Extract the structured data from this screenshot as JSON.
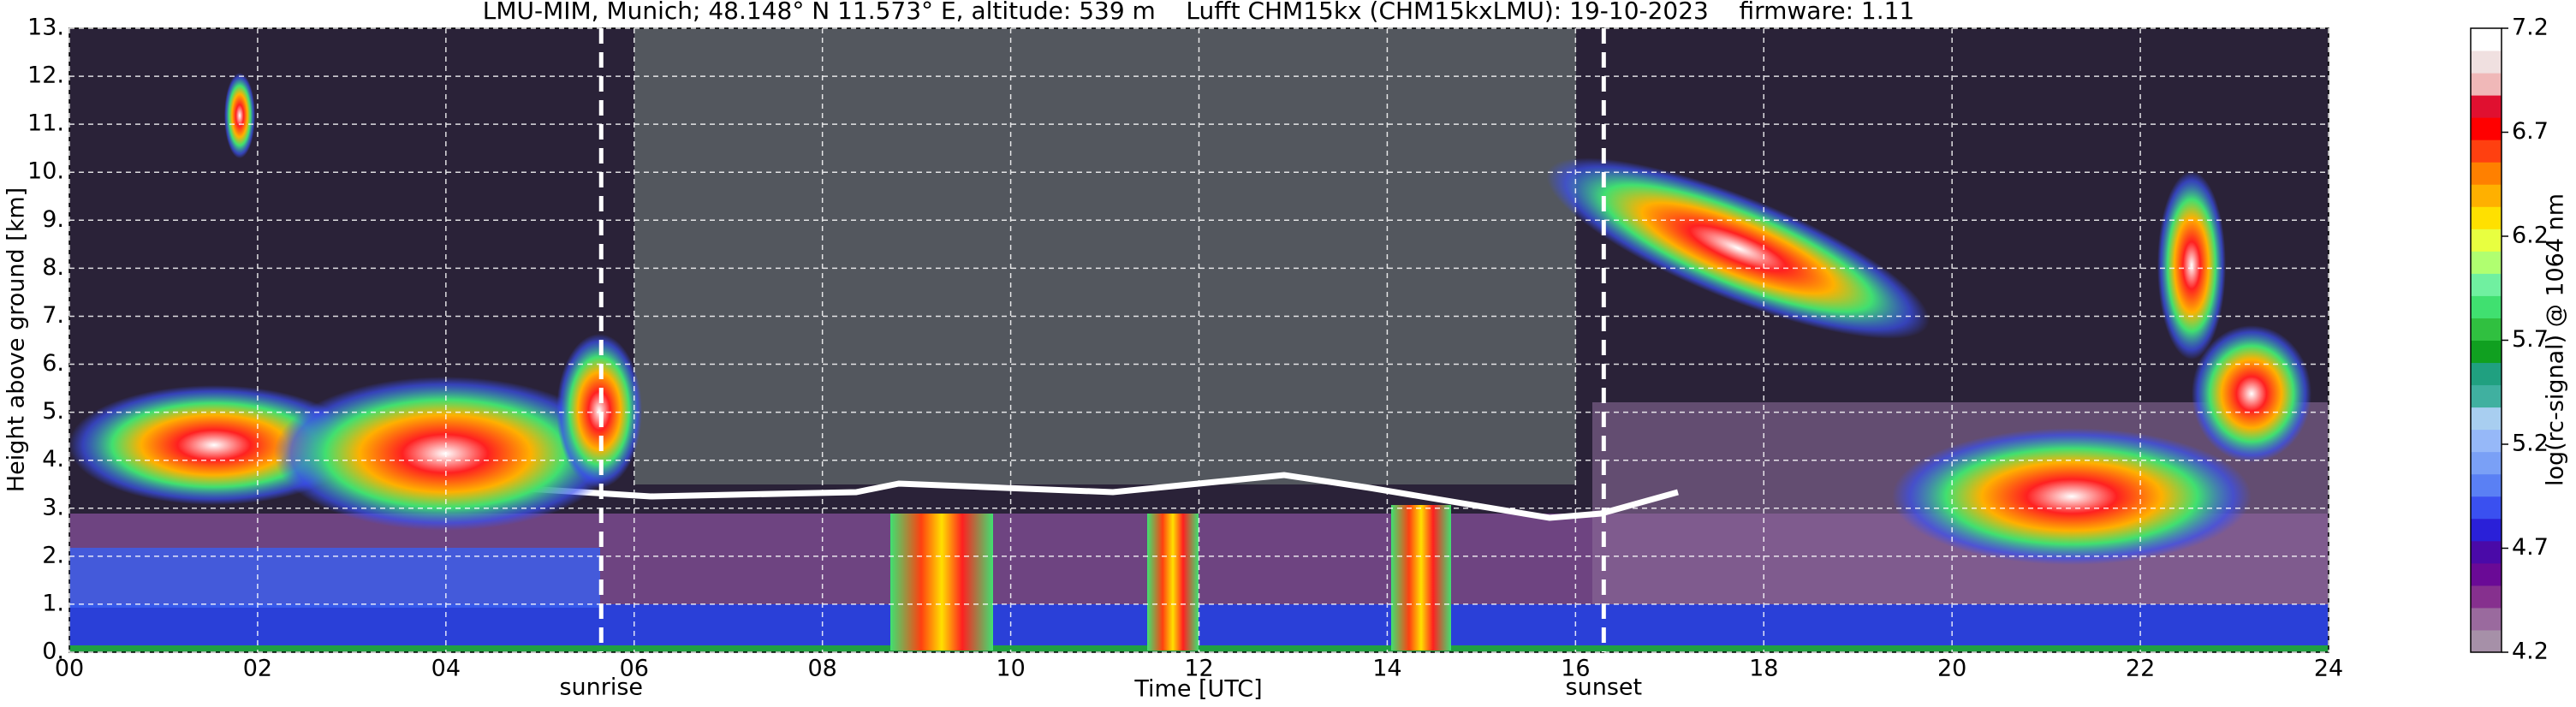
{
  "chart_data": {
    "type": "heatmap",
    "title": "LMU-MIM, Munich; 48.148° N 11.573° E, altitude: 539 m    Lufft CHM15kx (CHM15kxLMU): 19-10-2023    firmware: 1.11",
    "xlabel": "Time [UTC]",
    "ylabel": "Height above ground [km]",
    "xlim": [
      0,
      24
    ],
    "xticks": [
      {
        "value": 0,
        "label": "00"
      },
      {
        "value": 2,
        "label": "02"
      },
      {
        "value": 4,
        "label": "04"
      },
      {
        "value": 6,
        "label": "06"
      },
      {
        "value": 8,
        "label": "08"
      },
      10,
      12,
      14,
      16,
      18,
      20,
      22,
      24
    ],
    "ylim": [
      0,
      13
    ],
    "yticks": [
      {
        "value": 0,
        "label": "0."
      },
      {
        "value": 1,
        "label": "1."
      },
      {
        "value": 2,
        "label": "2."
      },
      {
        "value": 3,
        "label": "3."
      },
      {
        "value": 4,
        "label": "4."
      },
      {
        "value": 5,
        "label": "5."
      },
      {
        "value": 6,
        "label": "6."
      },
      {
        "value": 7,
        "label": "7."
      },
      {
        "value": 8,
        "label": "8."
      },
      {
        "value": 9,
        "label": "9."
      },
      {
        "value": 10,
        "label": "10."
      },
      {
        "value": 11,
        "label": "11."
      },
      {
        "value": 12,
        "label": "12."
      },
      {
        "value": 13,
        "label": "13."
      }
    ],
    "grid": true,
    "colorbar_label": "log(rc-signal) @ 1064 nm",
    "clim": [
      4.2,
      7.2
    ],
    "colorbar_ticks": [
      4.2,
      4.7,
      5.2,
      5.7,
      6.2,
      6.7,
      7.2
    ],
    "colormap": [
      "#a690a8",
      "#9a6a9e",
      "#86308e",
      "#6a0a96",
      "#4a0aa8",
      "#2a20d8",
      "#3a50f0",
      "#5a80f4",
      "#7aa0f6",
      "#96b8f8",
      "#a8cef0",
      "#40b0a0",
      "#20a080",
      "#10a020",
      "#30c040",
      "#40e070",
      "#70f0a0",
      "#b0ff70",
      "#e8ff40",
      "#ffe000",
      "#ffb000",
      "#ff8000",
      "#ff4010",
      "#ff0000",
      "#e01030",
      "#f0b8b8",
      "#f0e0e0",
      "#ffffff"
    ],
    "annotations": [
      {
        "x": 5.65,
        "label": "sunrise"
      },
      {
        "x": 16.3,
        "label": "sunset"
      }
    ]
  }
}
